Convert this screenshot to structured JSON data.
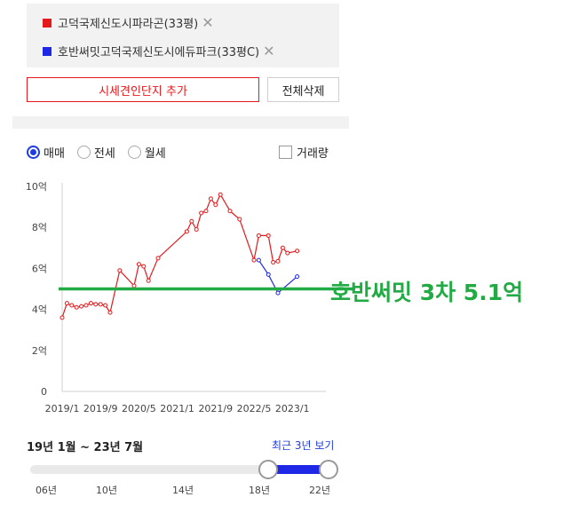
{
  "legend": [
    {
      "name": "고덕국제신도시파라곤(33평)",
      "color": "#e5191b"
    },
    {
      "name": "호반써밋고덕국제신도시에듀파크(33평C)",
      "color": "#1e27e6"
    }
  ],
  "legend_close_glyph": "✕",
  "buttons": {
    "add": "시세견인단지 추가",
    "delete_all": "전체삭제"
  },
  "tabs": {
    "sale": "매매",
    "jeonse": "전세",
    "monthly": "월세",
    "selected": "sale"
  },
  "volume_label": "거래량",
  "range_label": "19년 1월 ~ 23년 7월",
  "recent_label": "최근 3년 보기",
  "slider_years": [
    "06년",
    "10년",
    "14년",
    "18년",
    "22년"
  ],
  "slider_selected": [
    "2019/1",
    "2023/7"
  ],
  "annotation": "호반써밋 3차 5.1억",
  "chart_data": {
    "type": "line",
    "x_ticks": [
      "2019/1",
      "2019/9",
      "2020/5",
      "2021/1",
      "2021/9",
      "2022/5",
      "2023/1"
    ],
    "y_ticks": [
      "0",
      "2억",
      "4억",
      "6억",
      "8억",
      "10억"
    ],
    "ylim": [
      0,
      10
    ],
    "xlim": [
      "2019/1",
      "2023/8"
    ],
    "series": [
      {
        "name": "고덕국제신도시파라곤(33평)",
        "color": "#e5191b",
        "points": [
          [
            "2019/1",
            3.6
          ],
          [
            "2019/2",
            4.3
          ],
          [
            "2019/3",
            4.2
          ],
          [
            "2019/4",
            4.1
          ],
          [
            "2019/5",
            4.15
          ],
          [
            "2019/6",
            4.2
          ],
          [
            "2019/7",
            4.3
          ],
          [
            "2019/8",
            4.25
          ],
          [
            "2019/9",
            4.25
          ],
          [
            "2019/10",
            4.2
          ],
          [
            "2019/11",
            3.85
          ],
          [
            "2020/1",
            5.9
          ],
          [
            "2020/4",
            5.15
          ],
          [
            "2020/5",
            6.2
          ],
          [
            "2020/6",
            6.1
          ],
          [
            "2020/7",
            5.4
          ],
          [
            "2020/9",
            6.5
          ],
          [
            "2021/3",
            7.8
          ],
          [
            "2021/4",
            8.3
          ],
          [
            "2021/5",
            7.9
          ],
          [
            "2021/6",
            8.7
          ],
          [
            "2021/7",
            8.8
          ],
          [
            "2021/8",
            9.4
          ],
          [
            "2021/9",
            9.1
          ],
          [
            "2021/10",
            9.6
          ],
          [
            "2021/12",
            8.8
          ],
          [
            "2022/2",
            8.4
          ],
          [
            "2022/5",
            6.4
          ],
          [
            "2022/6",
            7.6
          ],
          [
            "2022/8",
            7.6
          ],
          [
            "2022/9",
            6.3
          ],
          [
            "2022/10",
            6.35
          ],
          [
            "2022/11",
            7.0
          ],
          [
            "2022/12",
            6.75
          ],
          [
            "2023/2",
            6.85
          ]
        ]
      },
      {
        "name": "호반써밋고덕국제신도시에듀파크(33평C)",
        "color": "#1e27e6",
        "points": [
          [
            "2022/6",
            6.4
          ],
          [
            "2022/8",
            5.7
          ],
          [
            "2022/10",
            4.8
          ],
          [
            "2023/2",
            5.6
          ]
        ]
      }
    ],
    "reference_line": {
      "value": 5.0,
      "color": "#22aa44"
    }
  }
}
